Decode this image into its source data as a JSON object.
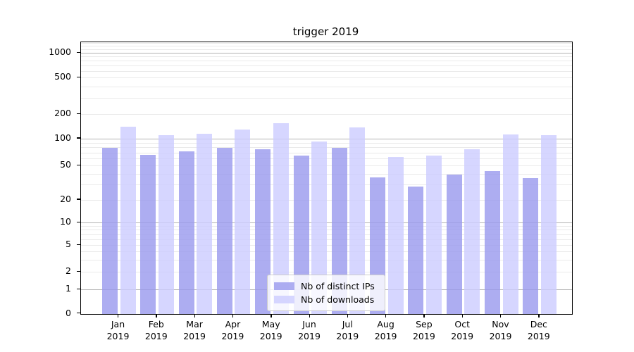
{
  "figure": {
    "background": "#ffffff"
  },
  "chart_data": {
    "type": "bar",
    "title": "trigger 2019",
    "scale": "symlog",
    "grid": true,
    "legend_position": "lower center",
    "categories": [
      "Jan",
      "Feb",
      "Mar",
      "Apr",
      "May",
      "Jun",
      "Jul",
      "Aug",
      "Sep",
      "Oct",
      "Nov",
      "Dec"
    ],
    "category_year": "2019",
    "series": [
      {
        "name": "Nb of distinct IPs",
        "color": "#9999ee",
        "alpha": 0.8,
        "values": [
          80,
          66,
          73,
          80,
          76,
          65,
          80,
          37,
          29,
          40,
          44,
          36
        ]
      },
      {
        "name": "Nb of downloads",
        "color": "#ccccff",
        "alpha": 0.8,
        "values": [
          140,
          110,
          116,
          130,
          156,
          93,
          138,
          63,
          65,
          76,
          114,
          112
        ]
      }
    ],
    "y_ticks": [
      0,
      1,
      2,
      5,
      10,
      20,
      50,
      100,
      200,
      500,
      1000
    ],
    "major_grid_values": [
      1,
      10,
      100,
      1000
    ],
    "ylim": [
      0,
      1350
    ],
    "xlabel": "",
    "ylabel": ""
  },
  "colors": {
    "major_grid": "#b3b3b3",
    "minor_grid": "#eaeaea",
    "spine": "#000000",
    "legend_border": "#cccccc",
    "legend_bg": "rgba(255,255,255,0.8)",
    "text": "#000000"
  }
}
